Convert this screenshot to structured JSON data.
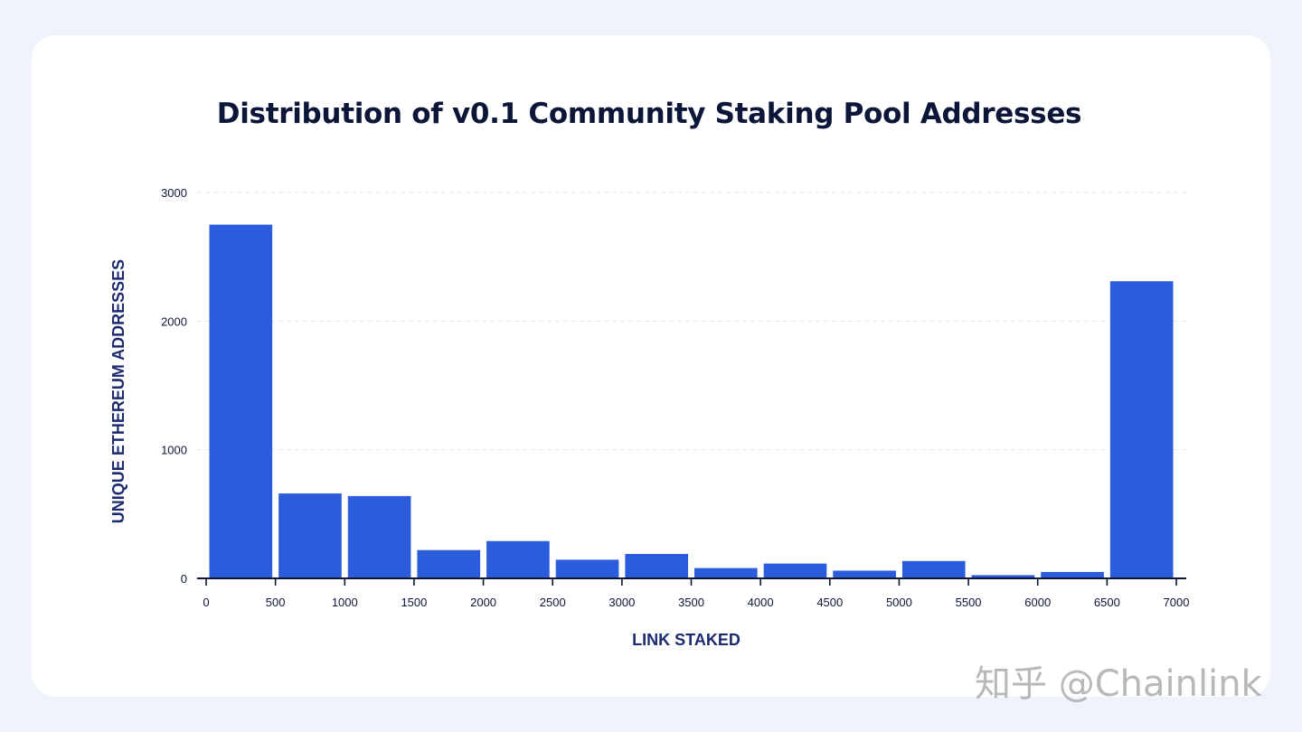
{
  "chart_data": {
    "type": "bar",
    "title": "Distribution of v0.1 Community Staking Pool Addresses",
    "xlabel": "LINK STAKED",
    "ylabel": "UNIQUE ETHEREUM ADDRESSES",
    "xlim": [
      0,
      7000
    ],
    "ylim": [
      0,
      3000
    ],
    "x_ticks": [
      "0",
      "500",
      "1000",
      "1500",
      "2000",
      "2500",
      "3000",
      "3500",
      "4000",
      "4500",
      "5000",
      "5500",
      "6000",
      "6500",
      "7000"
    ],
    "y_ticks": [
      "0",
      "1000",
      "2000",
      "3000"
    ],
    "bins": [
      {
        "x0": 0,
        "x1": 500,
        "value": 2750
      },
      {
        "x0": 500,
        "x1": 1000,
        "value": 660
      },
      {
        "x0": 1000,
        "x1": 1500,
        "value": 640
      },
      {
        "x0": 1500,
        "x1": 2000,
        "value": 220
      },
      {
        "x0": 2000,
        "x1": 2500,
        "value": 290
      },
      {
        "x0": 2500,
        "x1": 3000,
        "value": 145
      },
      {
        "x0": 3000,
        "x1": 3500,
        "value": 190
      },
      {
        "x0": 3500,
        "x1": 4000,
        "value": 80
      },
      {
        "x0": 4000,
        "x1": 4500,
        "value": 115
      },
      {
        "x0": 4500,
        "x1": 5000,
        "value": 60
      },
      {
        "x0": 5000,
        "x1": 5500,
        "value": 135
      },
      {
        "x0": 5500,
        "x1": 6000,
        "value": 25
      },
      {
        "x0": 6000,
        "x1": 6500,
        "value": 50
      },
      {
        "x0": 6500,
        "x1": 7000,
        "value": 2310
      }
    ],
    "grid": true,
    "bar_color": "#2a5cdb",
    "axis_color": "#0c1638"
  },
  "watermark": "知乎 @Chainlink"
}
